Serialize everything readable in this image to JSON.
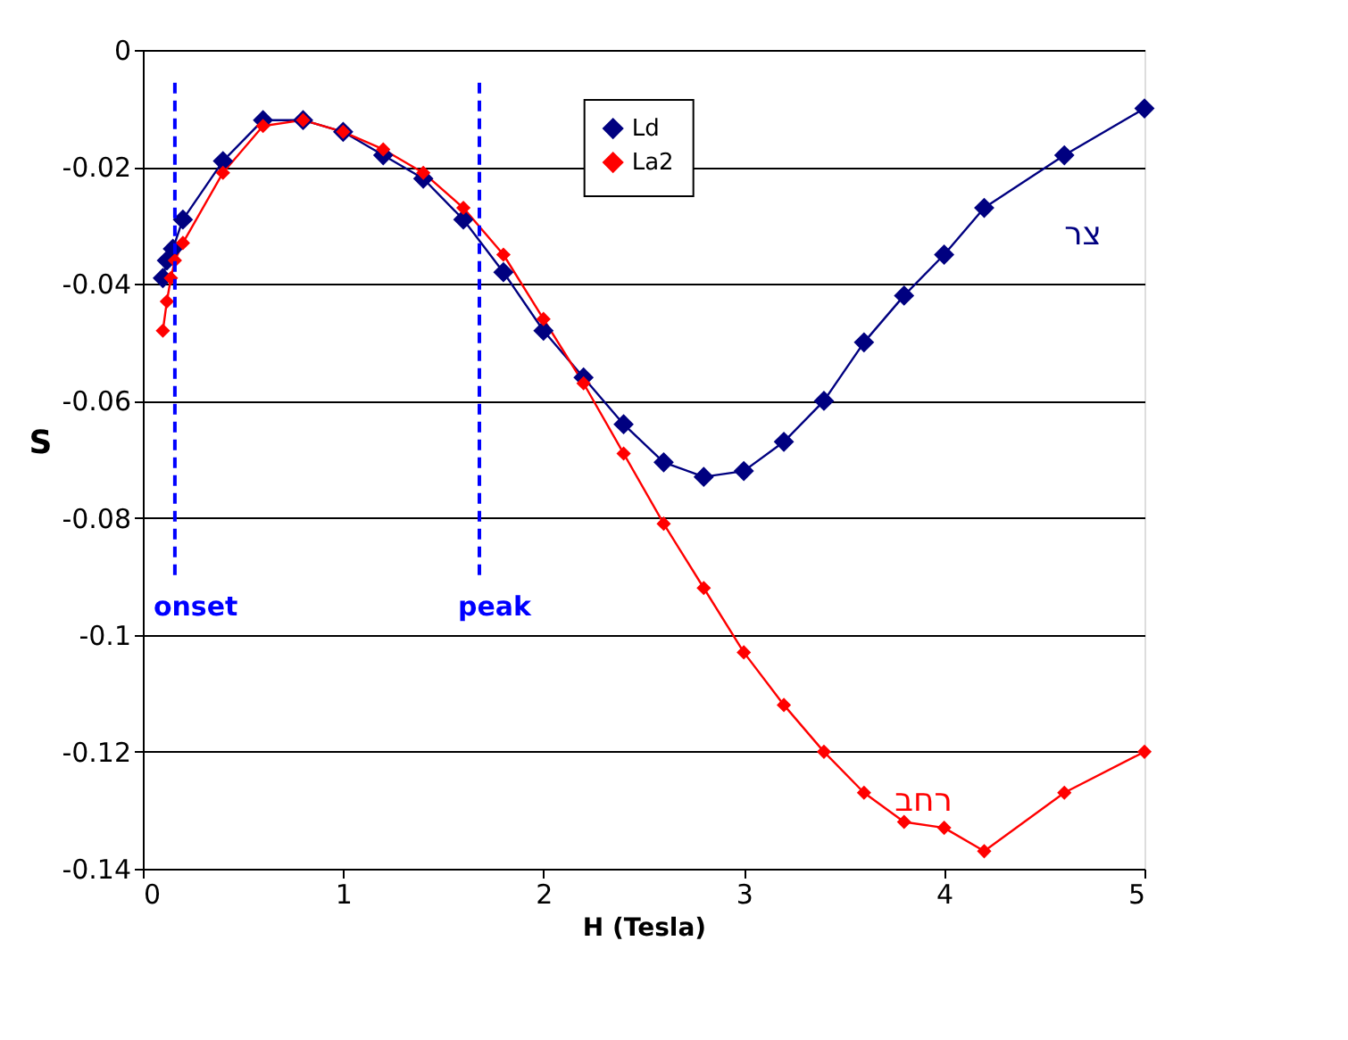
{
  "chart_data": {
    "type": "line",
    "xlabel": "H (Tesla)",
    "ylabel": "S",
    "xlim": [
      0,
      5
    ],
    "xticks": [
      0,
      1,
      2,
      3,
      4,
      5
    ],
    "ylim": [
      -0.14,
      0
    ],
    "yticks": [
      0,
      -0.02,
      -0.04,
      -0.06,
      -0.08,
      -0.1,
      -0.12,
      -0.14
    ],
    "grid": "y",
    "legend": "top right",
    "marker": "diamond",
    "line_style": "solid",
    "series": [
      {
        "name": "Ld",
        "color": "#000080",
        "x": [
          0.1,
          0.12,
          0.15,
          0.2,
          0.4,
          0.6,
          0.8,
          1.0,
          1.2,
          1.4,
          1.6,
          1.8,
          2.0,
          2.2,
          2.4,
          2.6,
          2.8,
          3.0,
          3.2,
          3.4,
          3.6,
          3.8,
          4.0,
          4.2,
          4.6,
          5.0
        ],
        "values": [
          -0.039,
          -0.036,
          -0.034,
          -0.029,
          -0.019,
          -0.012,
          -0.012,
          -0.014,
          -0.018,
          -0.022,
          -0.029,
          -0.038,
          -0.048,
          -0.056,
          -0.064,
          -0.0705,
          -0.073,
          -0.072,
          -0.067,
          -0.06,
          -0.05,
          -0.042,
          -0.035,
          -0.027,
          -0.018,
          -0.01
        ]
      },
      {
        "name": "La2",
        "color": "#ff0000",
        "x": [
          0.1,
          0.12,
          0.14,
          0.16,
          0.2,
          0.4,
          0.6,
          0.8,
          1.0,
          1.2,
          1.4,
          1.6,
          1.8,
          2.0,
          2.2,
          2.4,
          2.6,
          2.8,
          3.0,
          3.2,
          3.4,
          3.6,
          3.8,
          4.0,
          4.2,
          4.6,
          5.0
        ],
        "values": [
          -0.048,
          -0.043,
          -0.039,
          -0.036,
          -0.033,
          -0.021,
          -0.013,
          -0.012,
          -0.014,
          -0.017,
          -0.021,
          -0.027,
          -0.035,
          -0.046,
          -0.057,
          -0.069,
          -0.081,
          -0.092,
          -0.103,
          -0.112,
          -0.12,
          -0.127,
          -0.132,
          -0.133,
          -0.137,
          -0.127,
          -0.12
        ]
      }
    ],
    "ref_lines": [
      {
        "axis": "x",
        "value": 0.16,
        "label": "onset",
        "color": "#0000ff",
        "line_style": "dashed"
      },
      {
        "axis": "x",
        "value": 1.68,
        "label": "peak",
        "color": "#0000ff",
        "line_style": "dashed"
      }
    ],
    "annotations": [
      "צר",
      "רחב"
    ]
  }
}
